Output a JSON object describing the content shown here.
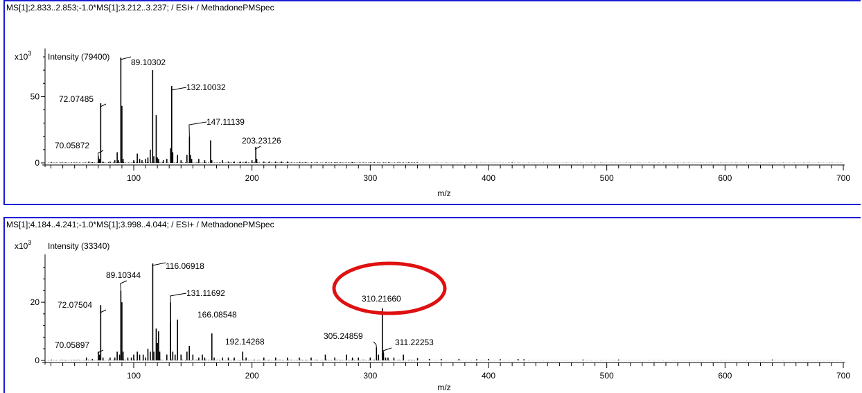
{
  "chart_data": [
    {
      "type": "spectrum",
      "title": "MS[1];2.833..2.853;-1.0*MS[1];3.212..3.237; / ESI+ / MethadonePMSpec",
      "y_multiplier_base": "x10",
      "y_multiplier_exp": "3",
      "ylabel": "Intensity (79400)",
      "xlabel": "m/z",
      "xlim": [
        25,
        700
      ],
      "ylim": [
        0,
        80
      ],
      "x_ticks": [
        100,
        200,
        300,
        400,
        500,
        600,
        700
      ],
      "x_tick_labels": [
        "100",
        "200",
        "300",
        "400",
        "500",
        "600",
        "700"
      ],
      "y_ticks": [
        0,
        50
      ],
      "y_tick_labels": [
        "0",
        "50"
      ],
      "peaks": [
        [
          62,
          1
        ],
        [
          65,
          0.5
        ],
        [
          70.05872,
          5
        ],
        [
          71,
          3
        ],
        [
          72.07485,
          45
        ],
        [
          74,
          1
        ],
        [
          80,
          1
        ],
        [
          84,
          2
        ],
        [
          86,
          8
        ],
        [
          87,
          2
        ],
        [
          89.10302,
          79.4
        ],
        [
          90,
          43
        ],
        [
          91,
          3
        ],
        [
          100,
          2
        ],
        [
          103,
          7
        ],
        [
          105,
          3
        ],
        [
          107,
          2
        ],
        [
          110,
          3
        ],
        [
          112,
          4
        ],
        [
          114,
          10
        ],
        [
          116,
          70
        ],
        [
          117,
          5
        ],
        [
          119,
          36
        ],
        [
          120,
          4
        ],
        [
          121,
          3
        ],
        [
          125,
          2
        ],
        [
          128,
          3
        ],
        [
          131,
          11
        ],
        [
          132.10032,
          58
        ],
        [
          133,
          8
        ],
        [
          137,
          6
        ],
        [
          140,
          2
        ],
        [
          145,
          6
        ],
        [
          147.11139,
          20
        ],
        [
          148,
          6
        ],
        [
          149,
          3
        ],
        [
          155,
          3
        ],
        [
          160,
          2
        ],
        [
          165,
          17
        ],
        [
          166,
          2
        ],
        [
          175,
          2
        ],
        [
          180,
          1
        ],
        [
          185,
          1
        ],
        [
          190,
          1
        ],
        [
          195,
          1
        ],
        [
          200,
          2
        ],
        [
          203.23126,
          12
        ],
        [
          204,
          3
        ],
        [
          210,
          1
        ],
        [
          215,
          1
        ],
        [
          220,
          1
        ],
        [
          225,
          1
        ],
        [
          230,
          1
        ],
        [
          240,
          0.5
        ],
        [
          245,
          0.5
        ],
        [
          270,
          0.4
        ],
        [
          285,
          0.5
        ],
        [
          300,
          0.3
        ],
        [
          340,
          0.3
        ],
        [
          420,
          0.3
        ]
      ],
      "annotations": [
        {
          "x": 72.07485,
          "label": "72.07485"
        },
        {
          "x": 70.05872,
          "label": "70.05872"
        },
        {
          "x": 89.10302,
          "label": "89.10302"
        },
        {
          "x": 132.10032,
          "label": "132.10032"
        },
        {
          "x": 147.11139,
          "label": "147.11139"
        },
        {
          "x": 203.23126,
          "label": "203.23126"
        }
      ]
    },
    {
      "type": "spectrum",
      "title": "MS[1];4.184..4.241;-1.0*MS[1];3.998..4.044; / ESI+ / MethadonePMSpec",
      "y_multiplier_base": "x10",
      "y_multiplier_exp": "3",
      "ylabel": "Intensity (33340)",
      "xlabel": "m/z",
      "xlim": [
        25,
        700
      ],
      "ylim": [
        0,
        33.6
      ],
      "x_ticks": [
        100,
        200,
        300,
        400,
        500,
        600,
        700
      ],
      "x_tick_labels": [
        "100",
        "200",
        "300",
        "400",
        "500",
        "600",
        "700"
      ],
      "y_ticks": [
        0,
        20
      ],
      "y_tick_labels": [
        "0",
        "20"
      ],
      "peaks": [
        [
          60,
          1
        ],
        [
          65,
          0.5
        ],
        [
          70.05897,
          3
        ],
        [
          71,
          2
        ],
        [
          72.07504,
          19
        ],
        [
          74,
          1
        ],
        [
          80,
          1
        ],
        [
          84,
          1
        ],
        [
          86,
          3
        ],
        [
          88,
          2
        ],
        [
          89.10344,
          24
        ],
        [
          90,
          20
        ],
        [
          91,
          3
        ],
        [
          95,
          1
        ],
        [
          98,
          1
        ],
        [
          100,
          2
        ],
        [
          103,
          3
        ],
        [
          105,
          2
        ],
        [
          108,
          2
        ],
        [
          110,
          1
        ],
        [
          112,
          4
        ],
        [
          114,
          3
        ],
        [
          116.06918,
          33.3
        ],
        [
          117,
          3
        ],
        [
          119,
          11
        ],
        [
          120,
          6
        ],
        [
          121,
          10
        ],
        [
          122,
          3
        ],
        [
          128,
          2
        ],
        [
          131,
          13
        ],
        [
          131.11692,
          20
        ],
        [
          133,
          3
        ],
        [
          135,
          2
        ],
        [
          137,
          14
        ],
        [
          140,
          2
        ],
        [
          145,
          3
        ],
        [
          147,
          5
        ],
        [
          150,
          2
        ],
        [
          155,
          1
        ],
        [
          158,
          2
        ],
        [
          160,
          1
        ],
        [
          166.08548,
          9.3
        ],
        [
          168,
          1
        ],
        [
          175,
          1
        ],
        [
          180,
          1
        ],
        [
          185,
          1
        ],
        [
          192.14268,
          3
        ],
        [
          195,
          1
        ],
        [
          210,
          1
        ],
        [
          220,
          1
        ],
        [
          230,
          1
        ],
        [
          240,
          1
        ],
        [
          250,
          1
        ],
        [
          262,
          2
        ],
        [
          270,
          1
        ],
        [
          280,
          2
        ],
        [
          285,
          1
        ],
        [
          290,
          1
        ],
        [
          300,
          1
        ],
        [
          305.24859,
          4.5
        ],
        [
          307,
          2
        ],
        [
          310.2166,
          18
        ],
        [
          311.22253,
          2.6
        ],
        [
          313,
          1
        ],
        [
          315,
          1
        ],
        [
          320,
          1
        ],
        [
          328,
          2
        ],
        [
          340,
          0.8
        ],
        [
          350,
          0.5
        ],
        [
          360,
          0.5
        ],
        [
          375,
          0.5
        ],
        [
          390,
          0.4
        ],
        [
          400,
          0.5
        ],
        [
          410,
          0.4
        ],
        [
          425,
          0.5
        ],
        [
          430,
          0.4
        ],
        [
          480,
          0.3
        ],
        [
          510,
          0.3
        ],
        [
          640,
          0.3
        ]
      ],
      "annotations": [
        {
          "x": 116.06918,
          "label": "116.06918"
        },
        {
          "x": 89.10344,
          "label": "89.10344"
        },
        {
          "x": 131.11692,
          "label": "131.11692"
        },
        {
          "x": 72.07504,
          "label": "72.07504"
        },
        {
          "x": 166.08548,
          "label": "166.08548"
        },
        {
          "x": 70.05897,
          "label": "70.05897"
        },
        {
          "x": 192.14268,
          "label": "192.14268"
        },
        {
          "x": 305.24859,
          "label": "305.24859"
        },
        {
          "x": 310.2166,
          "label": "310.21660"
        },
        {
          "x": 311.22253,
          "label": "311.22253"
        }
      ],
      "highlight": {
        "shape": "ellipse",
        "color": "#e01010",
        "around": "310.21660"
      }
    }
  ]
}
